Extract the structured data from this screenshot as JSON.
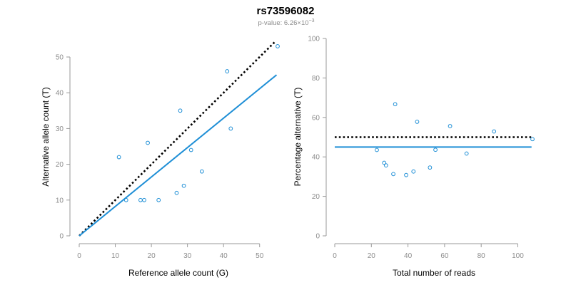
{
  "title": "rs73596082",
  "subtitle": {
    "prefix": "p-value: 6.26×10",
    "exponent": "−3"
  },
  "colors": {
    "points": "#1f8fd6",
    "fit_line": "#1f8fd6",
    "reference_line": "#000000",
    "axis": "#9a9a9a"
  },
  "chart_data": [
    {
      "type": "scatter",
      "xlabel": "Reference allele count (G)",
      "ylabel": "Alternative allele count (T)",
      "xlim": [
        0,
        55
      ],
      "ylim": [
        0,
        50
      ],
      "xticks": [
        0,
        10,
        20,
        30,
        40,
        50
      ],
      "yticks": [
        0,
        10,
        20,
        30,
        40,
        50
      ],
      "points": [
        {
          "x": 11,
          "y": 22
        },
        {
          "x": 13,
          "y": 10
        },
        {
          "x": 17,
          "y": 10
        },
        {
          "x": 18,
          "y": 10
        },
        {
          "x": 19,
          "y": 26
        },
        {
          "x": 22,
          "y": 10
        },
        {
          "x": 27,
          "y": 12
        },
        {
          "x": 28,
          "y": 35
        },
        {
          "x": 29,
          "y": 14
        },
        {
          "x": 31,
          "y": 24
        },
        {
          "x": 34,
          "y": 18
        },
        {
          "x": 41,
          "y": 46
        },
        {
          "x": 42,
          "y": 30
        },
        {
          "x": 55,
          "y": 53
        }
      ],
      "fit_line": {
        "x": [
          0,
          54.7
        ],
        "y": [
          0,
          45
        ]
      },
      "reference_line": {
        "x": [
          0,
          54.2
        ],
        "y": [
          0,
          54.2
        ]
      },
      "grid": false
    },
    {
      "type": "scatter",
      "xlabel": "Total number of reads",
      "ylabel": "Percentage alternative (T)",
      "xlim": [
        0,
        108
      ],
      "ylim": [
        0,
        100
      ],
      "xticks": [
        0,
        20,
        40,
        60,
        80,
        100
      ],
      "yticks": [
        0,
        20,
        40,
        60,
        80,
        100
      ],
      "points": [
        {
          "x": 23,
          "y": 43.5
        },
        {
          "x": 27,
          "y": 37
        },
        {
          "x": 28,
          "y": 35.7
        },
        {
          "x": 32,
          "y": 31.3
        },
        {
          "x": 33,
          "y": 66.7
        },
        {
          "x": 39,
          "y": 30.8
        },
        {
          "x": 43,
          "y": 32.6
        },
        {
          "x": 45,
          "y": 57.8
        },
        {
          "x": 52,
          "y": 34.6
        },
        {
          "x": 55,
          "y": 43.6
        },
        {
          "x": 63,
          "y": 55.6
        },
        {
          "x": 72,
          "y": 41.7
        },
        {
          "x": 87,
          "y": 52.9
        },
        {
          "x": 108,
          "y": 49
        }
      ],
      "fit_line": {
        "x": [
          0,
          107.5
        ],
        "y": [
          45,
          45
        ]
      },
      "reference_line": {
        "x": [
          0,
          107.5
        ],
        "y": [
          50,
          50
        ]
      },
      "grid": false
    }
  ]
}
